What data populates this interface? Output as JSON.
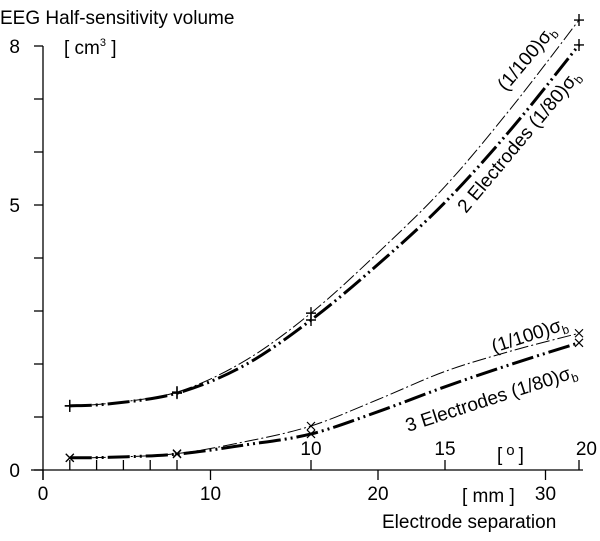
{
  "chart_data": {
    "type": "line",
    "title": "EEG Half-sensitivity volume",
    "ylabel_unit": "[ cm",
    "ylabel_unit_sup": "3",
    "ylabel_unit_close": " ]",
    "xlabel": "Electrode separation",
    "xlabel_unit": "[ mm ]",
    "x2label_unit": "[ o ]",
    "x2label_unit_open": "[",
    "x2label_unit_deg": "o",
    "x2label_unit_close": "]",
    "xlim": [
      0,
      32.5
    ],
    "ylim": [
      0,
      8
    ],
    "y_ticks_labeled": [
      {
        "value": 0,
        "label": "0"
      },
      {
        "value": 5,
        "label": "5"
      },
      {
        "value": 8,
        "label": "8"
      }
    ],
    "y_ticks_minor": [
      1,
      2,
      3,
      4,
      6,
      7
    ],
    "x_ticks": [
      {
        "value": 0,
        "label": "0"
      },
      {
        "value": 10,
        "label": "10"
      },
      {
        "value": 20,
        "label": "20"
      },
      {
        "value": 30,
        "label": "30"
      }
    ],
    "x2_ticks_labeled": [
      {
        "deg": 10,
        "label": "10"
      },
      {
        "deg": 15,
        "label": "15"
      },
      {
        "deg": 20,
        "label": "20"
      }
    ],
    "x2_ticks_minor_deg": [
      1,
      2,
      3,
      4,
      5
    ],
    "mm_per_degree": 1.6,
    "series": [
      {
        "name": "2 Electrodes (1/100)σb",
        "label_prefix": "(1/100)σ",
        "label_sub": "b",
        "group": "2 Electrodes",
        "style": "thin-dashdot",
        "marker": "plus",
        "x": [
          1.6,
          4,
          8,
          12,
          16,
          20,
          24,
          28,
          32
        ],
        "y": [
          1.21,
          1.26,
          1.47,
          2.05,
          2.96,
          4.1,
          5.35,
          6.85,
          8.49
        ]
      },
      {
        "name": "2 Electrodes (1/80)σb",
        "label_prefix": "2 Electrodes (1/80)σ",
        "label_sub": "b",
        "group": "2 Electrodes",
        "style": "thick-dashdot",
        "marker": "plus",
        "x": [
          1.6,
          4,
          8,
          12,
          16,
          20,
          24,
          28,
          32
        ],
        "y": [
          1.21,
          1.25,
          1.45,
          1.97,
          2.83,
          3.88,
          5.05,
          6.45,
          8.02
        ]
      },
      {
        "name": "3 Electrodes (1/100)σb",
        "label_prefix": "(1/100)σ",
        "label_sub": "b",
        "group": "3 Electrodes",
        "style": "thin-dashdot",
        "marker": "x",
        "x": [
          1.6,
          4,
          8,
          12,
          16,
          20,
          24,
          28,
          32
        ],
        "y": [
          0.23,
          0.24,
          0.31,
          0.53,
          0.83,
          1.33,
          1.86,
          2.25,
          2.58
        ]
      },
      {
        "name": "3 Electrodes (1/80)σb",
        "label_prefix": "3 Electrodes (1/80)σ",
        "label_sub": "b",
        "group": "3 Electrodes",
        "style": "thick-dashdot",
        "marker": "x",
        "x": [
          1.6,
          4,
          8,
          12,
          16,
          20,
          24,
          28,
          32
        ],
        "y": [
          0.23,
          0.24,
          0.3,
          0.47,
          0.68,
          1.1,
          1.57,
          2.0,
          2.4
        ]
      }
    ],
    "marker_x": [
      1.6,
      8,
      16,
      32
    ],
    "grid": false,
    "legend": "inline labels along curves"
  }
}
